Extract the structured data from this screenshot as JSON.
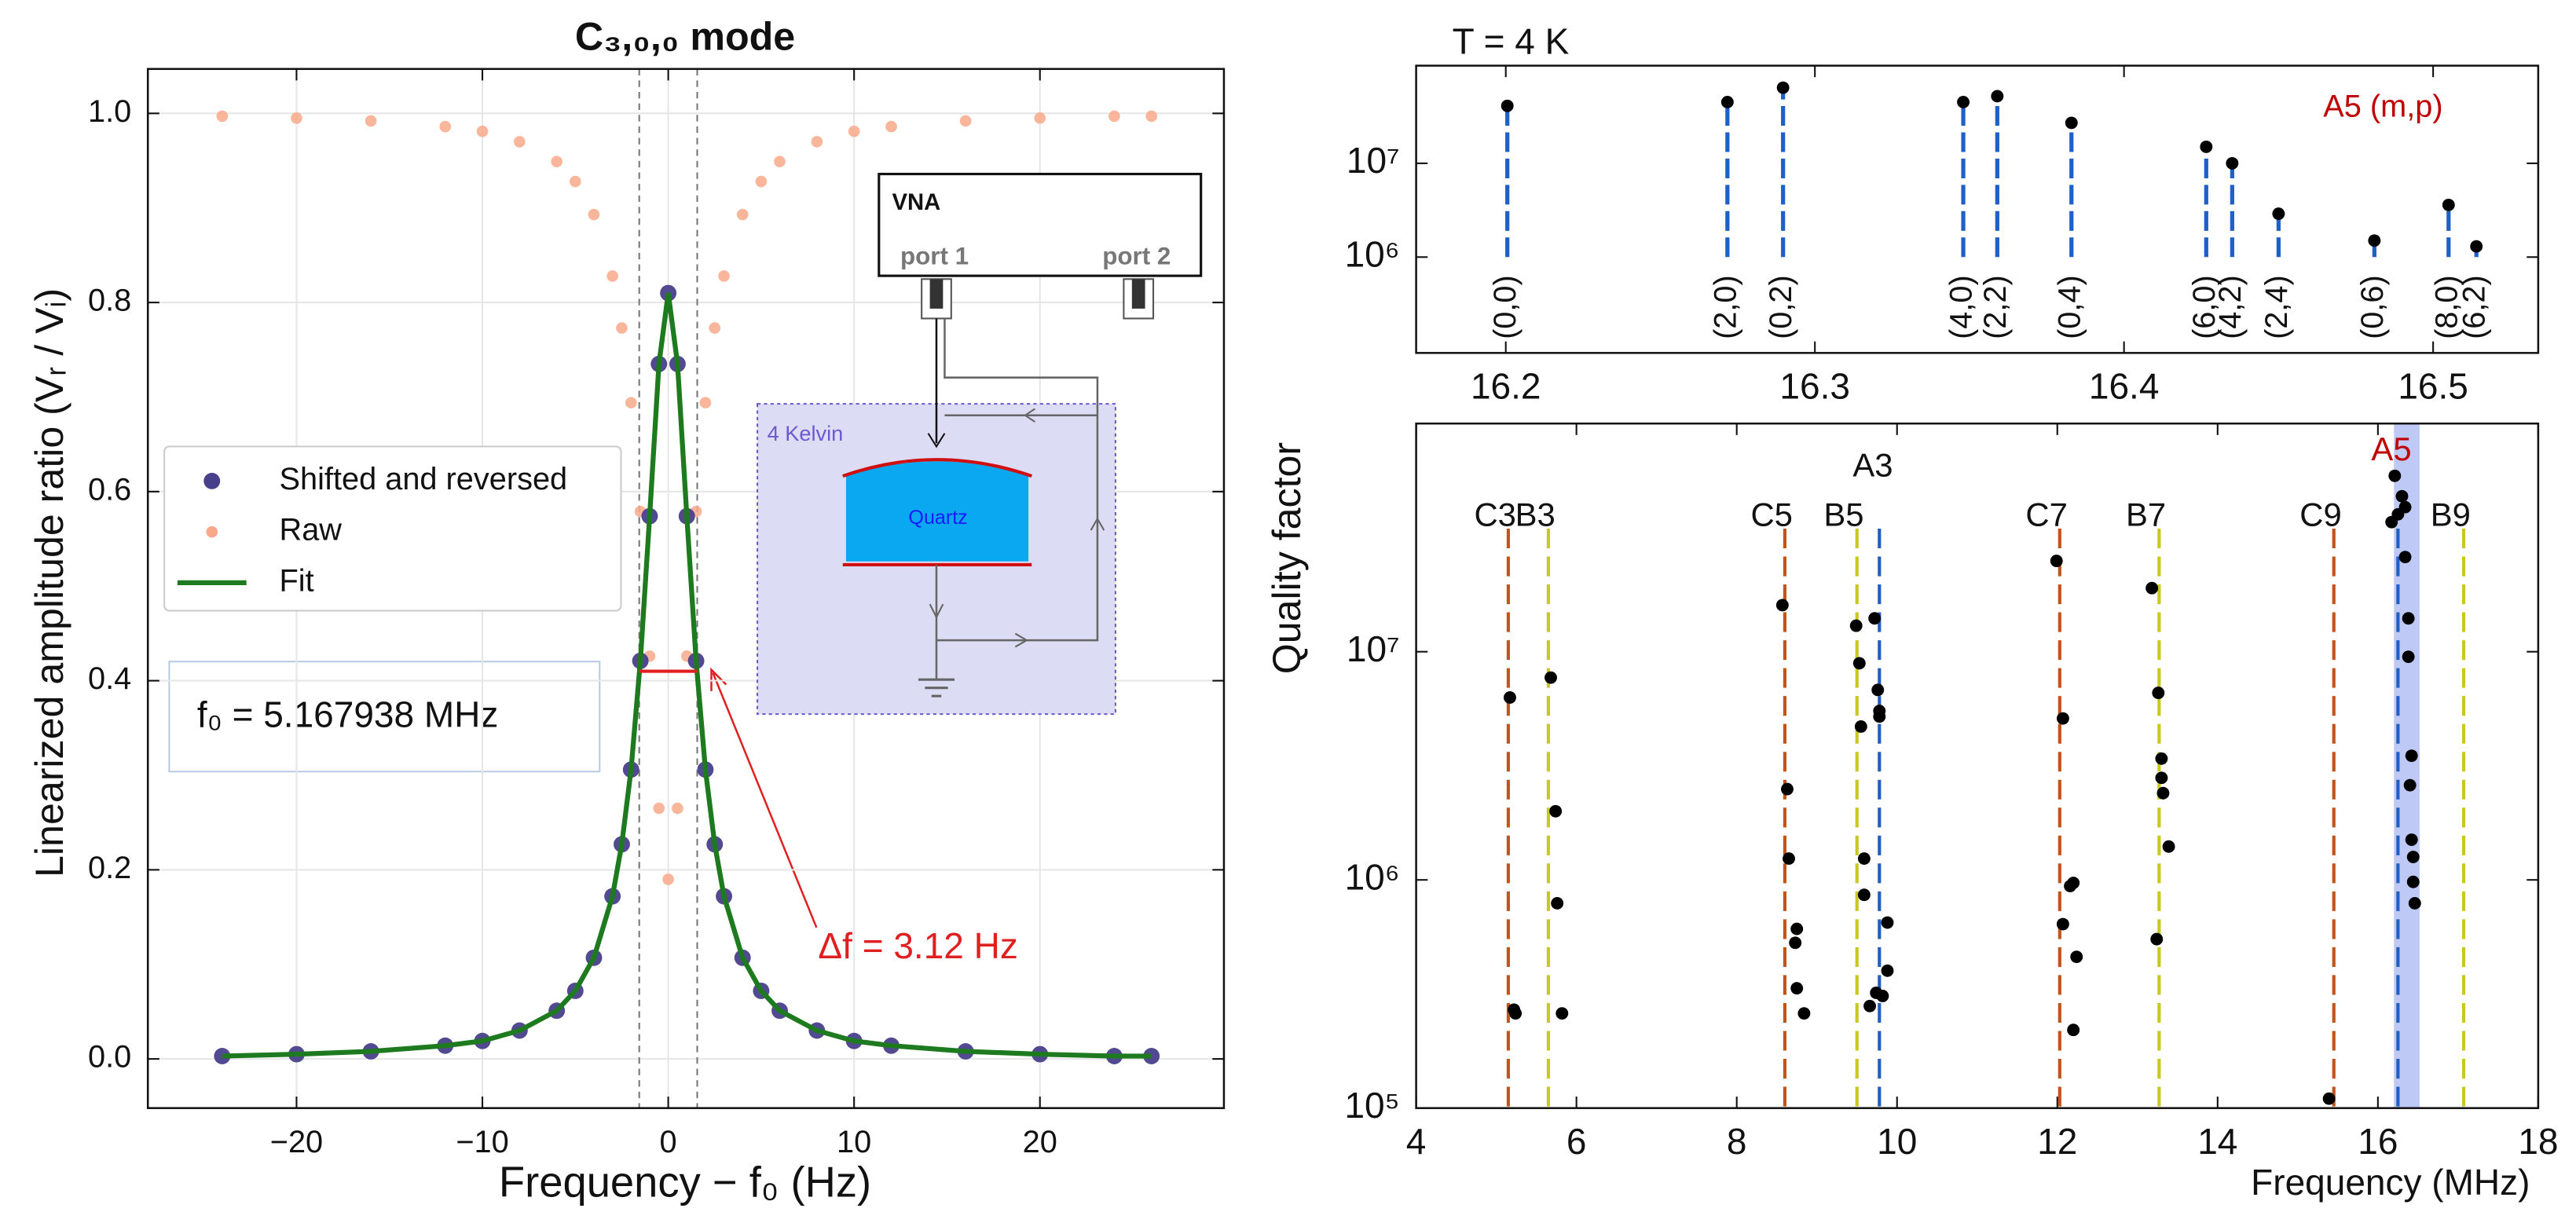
{
  "chart_data": [
    {
      "type": "scatter",
      "title": "C₃,₀,₀ mode",
      "x_label": "Frequency − f₀ (Hz)",
      "y_label": "Linearized amplitude ratio  (Vᵣ / Vᵢ)",
      "x": [
        -24,
        -20,
        -16,
        -12,
        -10,
        -8,
        -6,
        -5,
        -4,
        -3,
        -2.5,
        -2,
        -1.5,
        -1,
        -0.5,
        0,
        0.5,
        1,
        1.5,
        2,
        2.5,
        3,
        4,
        5,
        6,
        8,
        10,
        12,
        16,
        20,
        24,
        26
      ],
      "series": [
        {
          "name": "Raw",
          "color": "#f9a98a",
          "mode": "markers",
          "values": [
            0.997,
            0.995,
            0.992,
            0.986,
            0.981,
            0.97,
            0.949,
            0.928,
            0.893,
            0.828,
            0.773,
            0.694,
            0.579,
            0.426,
            0.265,
            0.19,
            0.265,
            0.426,
            0.579,
            0.694,
            0.773,
            0.828,
            0.893,
            0.928,
            0.949,
            0.97,
            0.981,
            0.986,
            0.992,
            0.995,
            0.997,
            0.997
          ]
        },
        {
          "name": "Shifted and reversed",
          "color": "#48408a",
          "mode": "markers",
          "values": [
            0.003,
            0.005,
            0.008,
            0.014,
            0.019,
            0.03,
            0.051,
            0.072,
            0.107,
            0.172,
            0.227,
            0.306,
            0.421,
            0.574,
            0.735,
            0.81,
            0.735,
            0.574,
            0.421,
            0.306,
            0.227,
            0.172,
            0.107,
            0.072,
            0.051,
            0.03,
            0.019,
            0.014,
            0.008,
            0.005,
            0.003,
            0.003
          ]
        },
        {
          "name": "Fit",
          "color": "#1e7a1e",
          "mode": "line",
          "values": [
            0.003,
            0.005,
            0.008,
            0.014,
            0.019,
            0.03,
            0.051,
            0.072,
            0.107,
            0.172,
            0.227,
            0.306,
            0.421,
            0.574,
            0.735,
            0.81,
            0.735,
            0.574,
            0.421,
            0.306,
            0.227,
            0.172,
            0.107,
            0.072,
            0.051,
            0.03,
            0.019,
            0.014,
            0.008,
            0.005,
            0.003,
            0.003
          ]
        }
      ],
      "xlim": [
        -28,
        29.9
      ],
      "ylim": [
        -0.052,
        1.047
      ],
      "xticks": [
        {
          "value": -20,
          "label": "−20"
        },
        {
          "value": -10,
          "label": "−10"
        },
        0,
        10,
        20
      ],
      "yticks": [
        {
          "value": 0,
          "label": "0.0"
        },
        0.2,
        0.4,
        0.6,
        0.8,
        {
          "value": 1,
          "label": "1.0"
        }
      ],
      "grid": true,
      "legend": "center-left",
      "vlines": [
        -1.56,
        1.56
      ],
      "hline": {
        "y": 0.41,
        "x": [
          -1.56,
          1.56
        ]
      },
      "annotations": [
        "f₀ = 5.167938 MHz",
        "Δf =  3.12 Hz"
      ],
      "inset": {
        "title": "VNA",
        "ports": [
          "port 1",
          "port 2"
        ],
        "box_label": "4 Kelvin",
        "crystal": "Quartz"
      }
    },
    {
      "type": "stem",
      "title": "T = 4 K",
      "label": "A5 (m,p)",
      "color": "#1f5fc8",
      "log_y": true,
      "baseline": 1000000,
      "x": [
        16.2005,
        16.2717,
        16.2897,
        16.348,
        16.359,
        16.383,
        16.4266,
        16.435,
        16.45,
        16.481,
        16.505,
        16.514
      ],
      "values": [
        41000000,
        45000000,
        64000000,
        45000000,
        52000000,
        27000000,
        15000000,
        10000000,
        2900000,
        1500000,
        3600000,
        1300000
      ],
      "point_labels": [
        "(0,0)",
        "(2,0)",
        "(0,2)",
        "(4,0)",
        "(2,2)",
        "(0,4)",
        "(6,0)",
        "(4,2)",
        "(2,4)",
        "(0,6)",
        "(8,0)",
        "(6,2)"
      ],
      "xlim": [
        16.171,
        16.534
      ],
      "ylim": [
        95000,
        110000000
      ],
      "xticks": [
        16.2,
        16.3,
        16.4,
        16.5
      ],
      "yticks": [
        {
          "value": 1000000,
          "label": "10⁶"
        },
        {
          "value": 10000000,
          "label": "10⁷"
        }
      ]
    },
    {
      "type": "scatter",
      "x_label": "Frequency (MHz)",
      "y_label": "Quality factor",
      "log_y": true,
      "color": "#000000",
      "x": [
        5.17,
        5.22,
        5.24,
        5.68,
        5.74,
        5.76,
        5.82,
        8.57,
        8.63,
        8.65,
        8.75,
        8.73,
        8.75,
        8.84,
        9.49,
        9.53,
        9.55,
        9.59,
        9.59,
        9.66,
        9.72,
        9.76,
        9.78,
        9.78,
        9.74,
        9.82,
        9.88,
        9.88,
        11.99,
        12.07,
        12.07,
        12.16,
        12.2,
        12.24,
        12.2,
        13.18,
        13.26,
        13.3,
        13.3,
        13.32,
        13.39,
        13.24,
        15.39,
        16.17,
        16.21,
        16.25,
        16.3,
        16.34,
        16.34,
        16.38,
        16.38,
        16.42,
        16.4,
        16.42,
        16.44,
        16.44,
        16.46
      ],
      "values": [
        6300000,
        270000,
        260000,
        7700000,
        2000000,
        790000,
        260000,
        16000000,
        2500000,
        1240000,
        610000,
        530000,
        335000,
        260000,
        13000000,
        8900000,
        4700000,
        1240000,
        860000,
        280000,
        14000000,
        6800000,
        5500000,
        5200000,
        320000,
        310000,
        650000,
        400000,
        25000000,
        5100000,
        640000,
        940000,
        970000,
        460000,
        220000,
        19000000,
        6600000,
        3400000,
        2800000,
        2400000,
        1400000,
        550000,
        110000,
        37000000,
        59000000,
        40000000,
        48000000,
        43000000,
        26000000,
        14000000,
        9500000,
        3500000,
        2600000,
        1500000,
        1260000,
        980000,
        790000
      ],
      "xlim": [
        4,
        18
      ],
      "ylim": [
        100000,
        100000000
      ],
      "xticks": [
        4,
        6,
        8,
        10,
        12,
        14,
        16,
        18
      ],
      "yticks": [
        {
          "value": 100000,
          "label": "10⁵"
        },
        {
          "value": 1000000,
          "label": "10⁶"
        },
        {
          "value": 10000000,
          "label": "10⁷"
        }
      ],
      "band": {
        "x": [
          16.2,
          16.52
        ],
        "color": "#b4c0f4"
      },
      "reference_lines": [
        {
          "label": "C3",
          "x": 5.15,
          "color": "#c0561a"
        },
        {
          "label": "B3",
          "x": 5.65,
          "color": "#c8c81e"
        },
        {
          "label": "C5",
          "x": 8.6,
          "color": "#c0561a"
        },
        {
          "label": "B5",
          "x": 9.5,
          "color": "#c8c81e"
        },
        {
          "label": "A3",
          "x": 9.78,
          "color": "#2060c0"
        },
        {
          "label": "C7",
          "x": 12.03,
          "color": "#c0561a"
        },
        {
          "label": "B7",
          "x": 13.27,
          "color": "#c8c81e"
        },
        {
          "label": "C9",
          "x": 15.45,
          "color": "#c0561a"
        },
        {
          "label": "A5",
          "x": 16.25,
          "color": "#2060c0",
          "label_color": "#c00000"
        },
        {
          "label": "B9",
          "x": 17.07,
          "color": "#c8c81e"
        }
      ]
    }
  ]
}
